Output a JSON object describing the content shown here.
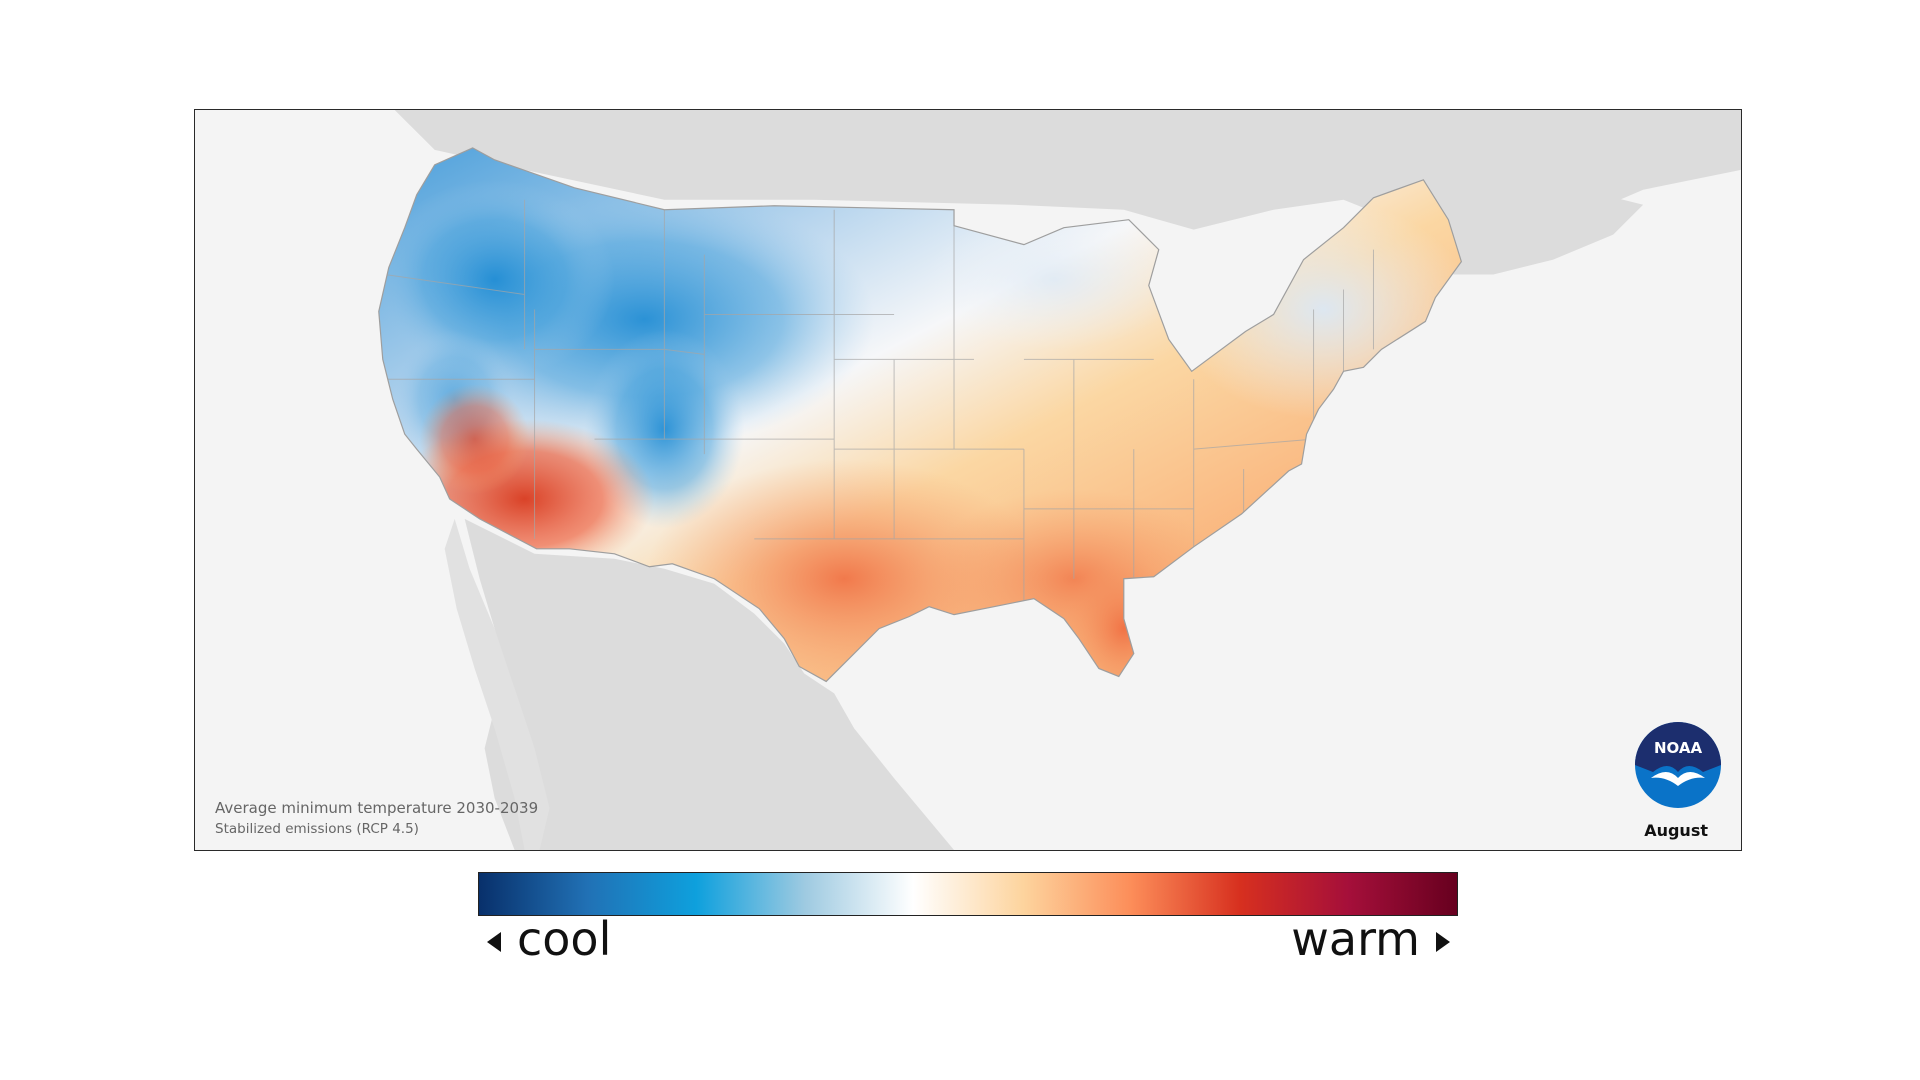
{
  "map": {
    "caption_title": "Average minimum temperature 2030-2039",
    "caption_subtitle": "Stabilized emissions (RCP 4.5)",
    "month": "August",
    "logo_text": "NOAA"
  },
  "legend": {
    "cool_label": "cool",
    "warm_label": "warm",
    "gradient_colors": [
      "#08306b",
      "#2171b5",
      "#0ea0dd",
      "#9ecae1",
      "#ffffff",
      "#fdd49e",
      "#fc8d59",
      "#d7301f",
      "#a50f3a",
      "#67001f"
    ]
  },
  "colors": {
    "land_bg": "#dcdcdc",
    "ocean_bg": "#f4f4f4",
    "cool_core": "#1f8fd4",
    "warm_core": "#e8552e"
  }
}
